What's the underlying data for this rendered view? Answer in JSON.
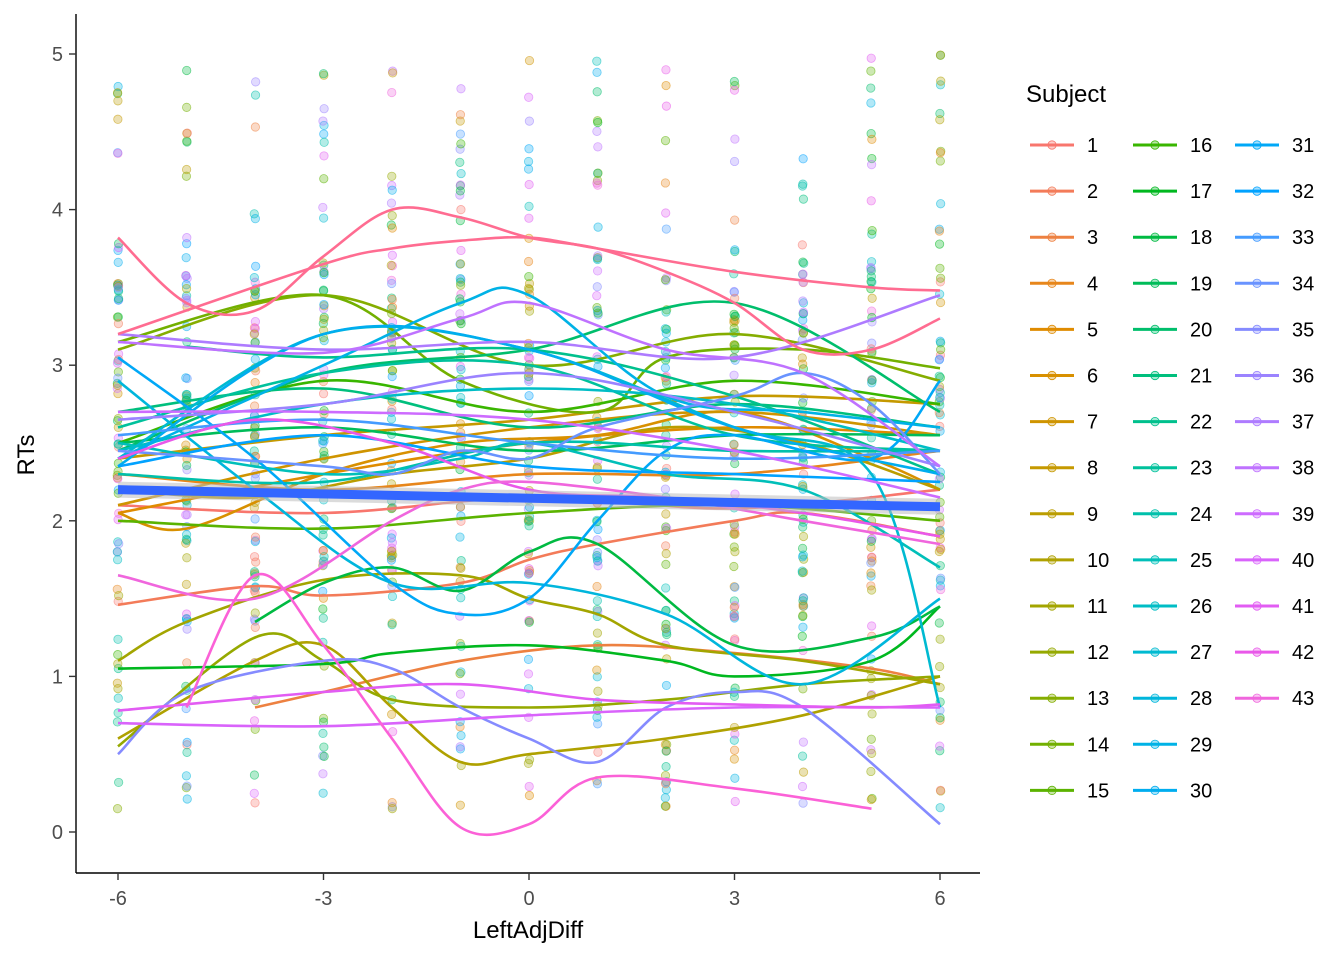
{
  "chart_data": {
    "type": "scatter",
    "xlabel": "LeftAdjDiff",
    "ylabel": "RTs",
    "xlim": [
      -6.9,
      6.9
    ],
    "ylim": [
      -0.27,
      5.25
    ],
    "x_ticks": [
      -6,
      -3,
      0,
      3,
      6
    ],
    "x_tick_labels": [
      "-6",
      "-3",
      "0",
      "3",
      "6"
    ],
    "y_ticks": [
      0,
      1,
      2,
      3,
      4,
      5
    ],
    "y_tick_labels": [
      "0",
      "1",
      "2",
      "3",
      "4",
      "5"
    ],
    "grid": false,
    "legend": {
      "title": "Subject",
      "placement": "right",
      "columns": 3,
      "entries": [
        "1",
        "2",
        "3",
        "4",
        "5",
        "6",
        "7",
        "8",
        "9",
        "10",
        "11",
        "12",
        "13",
        "14",
        "15",
        "16",
        "17",
        "18",
        "19",
        "20",
        "21",
        "22",
        "23",
        "24",
        "25",
        "26",
        "27",
        "28",
        "29",
        "30",
        "31",
        "32",
        "33",
        "34",
        "35",
        "36",
        "37",
        "38",
        "39",
        "40",
        "41",
        "42",
        "43"
      ]
    },
    "series": [
      {
        "name": "1",
        "color": "#F8766D",
        "x": [
          -6,
          -3,
          0,
          3,
          6
        ],
        "values": [
          2.1,
          2.05,
          2.15,
          2.08,
          2.2
        ]
      },
      {
        "name": "2",
        "color": "#F37B59",
        "x": [
          -6,
          -4,
          -3,
          -1,
          0,
          1,
          3,
          4,
          6
        ],
        "values": [
          1.46,
          1.58,
          1.52,
          1.6,
          1.75,
          1.85,
          2.0,
          2.05,
          1.9
        ]
      },
      {
        "name": "3",
        "color": "#ED8141",
        "x": [
          -4,
          -3,
          -1,
          1,
          3,
          5,
          6
        ],
        "values": [
          0.8,
          0.9,
          1.1,
          1.2,
          1.15,
          1.05,
          0.95
        ]
      },
      {
        "name": "4",
        "color": "#E7861B",
        "x": [
          -6,
          -3,
          0,
          3,
          6
        ],
        "values": [
          2.3,
          2.2,
          2.3,
          2.3,
          2.45
        ]
      },
      {
        "name": "5",
        "color": "#DF8B00",
        "x": [
          -6,
          -3,
          0,
          3,
          6
        ],
        "values": [
          2.05,
          2.3,
          2.5,
          2.6,
          2.55
        ]
      },
      {
        "name": "6",
        "color": "#D89000",
        "x": [
          -6,
          -5,
          -3,
          -1,
          1,
          3,
          5,
          6
        ],
        "values": [
          2.05,
          1.95,
          2.3,
          2.5,
          2.55,
          2.7,
          2.4,
          2.2
        ]
      },
      {
        "name": "7",
        "color": "#CF9400",
        "x": [
          -6,
          -3,
          0,
          3,
          6
        ],
        "values": [
          2.1,
          2.4,
          2.6,
          2.7,
          2.55
        ]
      },
      {
        "name": "8",
        "color": "#C59900",
        "x": [
          -6,
          -3,
          0,
          3,
          6
        ],
        "values": [
          2.4,
          2.55,
          2.65,
          2.8,
          2.75
        ]
      },
      {
        "name": "9",
        "color": "#BB9D00",
        "x": [
          -6,
          -4,
          -2,
          0,
          2,
          4,
          6
        ],
        "values": [
          2.2,
          2.15,
          2.3,
          2.4,
          2.6,
          2.5,
          2.2
        ]
      },
      {
        "name": "10",
        "color": "#AFA100",
        "x": [
          -6,
          -4,
          -3,
          -2,
          -1,
          0,
          2,
          4,
          6
        ],
        "values": [
          0.6,
          1.1,
          1.2,
          0.8,
          0.45,
          0.5,
          0.6,
          0.75,
          1.0
        ]
      },
      {
        "name": "11",
        "color": "#A3A500",
        "x": [
          -6,
          -5,
          -3,
          -1,
          0,
          1,
          2,
          4,
          6
        ],
        "values": [
          1.1,
          1.35,
          1.62,
          1.65,
          1.5,
          1.4,
          1.2,
          1.1,
          0.95
        ]
      },
      {
        "name": "12",
        "color": "#95A900",
        "x": [
          -6,
          -4,
          -3,
          -2,
          0,
          2,
          4,
          6
        ],
        "values": [
          0.55,
          1.25,
          1.1,
          0.85,
          0.8,
          0.85,
          0.95,
          1.0
        ]
      },
      {
        "name": "13",
        "color": "#85AD00",
        "x": [
          -6,
          -3,
          0,
          3,
          6
        ],
        "values": [
          3.1,
          3.45,
          3.0,
          3.2,
          2.9
        ]
      },
      {
        "name": "14",
        "color": "#72B000",
        "x": [
          -6,
          -3,
          -1,
          1,
          2,
          4,
          6
        ],
        "values": [
          3.15,
          3.45,
          2.9,
          2.7,
          3.05,
          3.1,
          2.98
        ]
      },
      {
        "name": "15",
        "color": "#5BB300",
        "x": [
          -6,
          -3,
          0,
          3,
          6
        ],
        "values": [
          2.0,
          1.95,
          2.05,
          2.1,
          2.0
        ]
      },
      {
        "name": "16",
        "color": "#39B600",
        "x": [
          -6,
          -3,
          0,
          3,
          6
        ],
        "values": [
          2.5,
          2.9,
          2.7,
          2.9,
          2.75
        ]
      },
      {
        "name": "17",
        "color": "#00B81F",
        "x": [
          -6,
          -3,
          -2,
          0,
          2,
          3,
          5,
          6
        ],
        "values": [
          1.05,
          1.08,
          1.15,
          1.2,
          1.1,
          1.0,
          1.1,
          1.45
        ]
      },
      {
        "name": "18",
        "color": "#00BA42",
        "x": [
          -4,
          -3,
          -2,
          -1,
          0,
          1,
          3,
          5,
          6
        ],
        "values": [
          1.35,
          1.6,
          1.7,
          1.55,
          1.8,
          1.85,
          1.2,
          1.25,
          1.45
        ]
      },
      {
        "name": "19",
        "color": "#00BC59",
        "x": [
          -6,
          -3,
          0,
          3,
          6
        ],
        "values": [
          2.5,
          2.6,
          2.45,
          2.55,
          2.55
        ]
      },
      {
        "name": "20",
        "color": "#00BE6C",
        "x": [
          -6,
          -3,
          0,
          3,
          6
        ],
        "values": [
          2.45,
          2.95,
          3.1,
          3.4,
          2.7
        ]
      },
      {
        "name": "21",
        "color": "#00BF7D",
        "x": [
          -6,
          -3,
          0,
          3,
          6
        ],
        "values": [
          2.7,
          2.85,
          2.6,
          2.75,
          2.6
        ]
      },
      {
        "name": "22",
        "color": "#00C08D",
        "x": [
          -5,
          -3,
          0,
          3,
          6
        ],
        "values": [
          3.12,
          3.05,
          3.1,
          2.8,
          2.3
        ]
      },
      {
        "name": "23",
        "color": "#00C19C",
        "x": [
          -6,
          -3,
          0,
          3,
          6
        ],
        "values": [
          2.6,
          2.95,
          3.0,
          2.55,
          2.45
        ]
      },
      {
        "name": "24",
        "color": "#00C0AB",
        "x": [
          -6,
          -3,
          0,
          3,
          6
        ],
        "values": [
          2.3,
          2.25,
          2.5,
          2.45,
          2.45
        ]
      },
      {
        "name": "25",
        "color": "#00BFB9",
        "x": [
          -6,
          -3,
          -1,
          0,
          2,
          4,
          6
        ],
        "values": [
          2.5,
          2.3,
          2.4,
          2.5,
          2.3,
          2.2,
          1.7
        ]
      },
      {
        "name": "26",
        "color": "#00BDC5",
        "x": [
          -6,
          -3,
          0,
          3,
          6
        ],
        "values": [
          2.45,
          2.75,
          2.85,
          2.75,
          2.45
        ]
      },
      {
        "name": "27",
        "color": "#00BAD1",
        "x": [
          -6,
          -3,
          0,
          3,
          5,
          6
        ],
        "values": [
          2.4,
          3.2,
          3.1,
          2.6,
          2.3,
          0.8
        ]
      },
      {
        "name": "28",
        "color": "#00B6DC",
        "x": [
          -6,
          -4,
          -2,
          0,
          2,
          4,
          6
        ],
        "values": [
          2.9,
          2.2,
          1.6,
          1.6,
          1.4,
          0.95,
          1.5
        ]
      },
      {
        "name": "29",
        "color": "#00B2E6",
        "x": [
          -6,
          -3,
          -1,
          0,
          2,
          4,
          6
        ],
        "values": [
          2.4,
          3.0,
          3.4,
          3.45,
          2.8,
          2.7,
          2.6
        ]
      },
      {
        "name": "30",
        "color": "#00ADEF",
        "x": [
          -6,
          -3,
          0,
          3,
          6
        ],
        "values": [
          2.35,
          3.2,
          3.1,
          2.6,
          2.3
        ]
      },
      {
        "name": "31",
        "color": "#00A8F7",
        "x": [
          -6,
          -4,
          -2,
          -1,
          0,
          1,
          2,
          3,
          5,
          6
        ],
        "values": [
          3.05,
          2.4,
          1.6,
          1.4,
          1.5,
          2.0,
          2.45,
          2.55,
          2.4,
          2.9
        ]
      },
      {
        "name": "32",
        "color": "#01A2FF",
        "x": [
          -6,
          -3,
          0,
          3,
          6
        ],
        "values": [
          2.35,
          2.55,
          2.35,
          2.3,
          2.25
        ]
      },
      {
        "name": "33",
        "color": "#449BFF",
        "x": [
          -6,
          -3,
          0,
          3,
          6
        ],
        "values": [
          2.55,
          2.65,
          2.5,
          2.4,
          2.45
        ]
      },
      {
        "name": "34",
        "color": "#6993FF",
        "x": [
          -6,
          -3,
          -2,
          -1,
          0,
          1,
          3,
          4,
          5,
          6
        ],
        "values": [
          2.45,
          2.35,
          2.3,
          2.45,
          2.4,
          2.6,
          2.8,
          2.95,
          2.75,
          2.3
        ]
      },
      {
        "name": "35",
        "color": "#858BFF",
        "x": [
          -6,
          -5,
          -3,
          -2,
          -1,
          0,
          1,
          2,
          3,
          4,
          6
        ],
        "values": [
          0.5,
          0.9,
          1.1,
          1.05,
          0.8,
          0.6,
          0.45,
          0.8,
          0.9,
          0.8,
          0.05
        ]
      },
      {
        "name": "36",
        "color": "#9B83FF",
        "x": [
          -6,
          -3,
          0,
          3,
          6
        ],
        "values": [
          2.65,
          2.75,
          2.95,
          2.7,
          2.35
        ]
      },
      {
        "name": "37",
        "color": "#AE7BFF",
        "x": [
          -6,
          -3,
          0,
          3,
          6
        ],
        "values": [
          3.2,
          3.1,
          3.15,
          3.05,
          3.45
        ]
      },
      {
        "name": "38",
        "color": "#BF72FF",
        "x": [
          -6,
          -3,
          -1,
          0,
          2,
          4,
          6
        ],
        "values": [
          3.15,
          3.08,
          3.3,
          3.4,
          3.1,
          2.95,
          2.35
        ]
      },
      {
        "name": "39",
        "color": "#CD6BFF",
        "x": [
          -6,
          -3,
          0,
          3,
          6
        ],
        "values": [
          2.7,
          2.7,
          2.65,
          2.45,
          2.15
        ]
      },
      {
        "name": "40",
        "color": "#D963FB",
        "x": [
          -6,
          -3,
          0,
          3,
          6
        ],
        "values": [
          0.7,
          0.68,
          0.75,
          0.8,
          0.8
        ]
      },
      {
        "name": "41",
        "color": "#E25CF3",
        "x": [
          -6,
          -3,
          -1,
          1,
          3,
          5,
          6
        ],
        "values": [
          0.78,
          0.9,
          0.95,
          0.85,
          0.82,
          0.8,
          0.82
        ]
      },
      {
        "name": "42",
        "color": "#E958E9",
        "x": [
          -6,
          -4,
          -2,
          0,
          2,
          4,
          6
        ],
        "values": [
          2.4,
          2.65,
          2.5,
          2.2,
          2.15,
          2.05,
          1.9
        ]
      },
      {
        "name": "43",
        "color": "#F066DD",
        "x": [
          -6,
          -4,
          -2,
          -1,
          0,
          2,
          4,
          6
        ],
        "values": [
          1.65,
          1.5,
          2.0,
          2.2,
          2.25,
          2.15,
          2.0,
          1.85
        ]
      }
    ],
    "extra_series_lines": [
      {
        "color": "#FF6C91",
        "x": [
          -6,
          -5,
          -4,
          -3,
          -2,
          -1,
          0,
          1,
          2,
          3,
          4,
          5,
          6
        ],
        "values": [
          3.82,
          3.4,
          3.35,
          3.7,
          4.0,
          3.95,
          3.82,
          3.75,
          3.6,
          3.4,
          3.1,
          3.1,
          3.3
        ]
      },
      {
        "name_ref": "42",
        "color": "#FF6C91",
        "x": [
          -6,
          -3,
          -2,
          -1,
          0,
          1,
          3,
          5,
          6
        ],
        "values": [
          3.2,
          3.65,
          3.75,
          3.8,
          3.82,
          3.75,
          3.6,
          3.5,
          3.48
        ]
      },
      {
        "name_ref": "43",
        "color": "#FB61D7",
        "x": [
          -5,
          -4,
          -3,
          -2,
          -1,
          0,
          1,
          3,
          5
        ],
        "values": [
          0.8,
          1.65,
          1.2,
          0.6,
          0.03,
          0.05,
          0.35,
          0.28,
          0.15
        ]
      }
    ],
    "overall_trend": {
      "color": "#3366FF",
      "x": [
        -6,
        6
      ],
      "values": [
        2.2,
        2.09
      ]
    },
    "points": {
      "x_levels": [
        -6,
        -5,
        -4,
        -3,
        -2,
        -1,
        0,
        1,
        2,
        3,
        4,
        5,
        6
      ],
      "y_range": [
        0.15,
        5.0
      ],
      "alpha": 0.3
    }
  }
}
